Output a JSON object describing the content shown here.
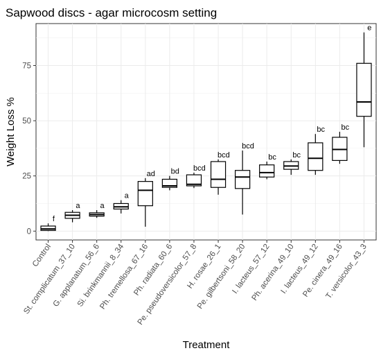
{
  "chart_data": {
    "type": "boxplot",
    "title": "Sapwood discs - agar microcosm setting",
    "xlabel": "Treatment",
    "ylabel": "Weight Loss %",
    "ylim": [
      -4,
      94
    ],
    "yticks": [
      0,
      25,
      50,
      75
    ],
    "grid": true,
    "boxes": [
      {
        "category": "Control",
        "min": 0,
        "q1": 0.3,
        "median": 1.0,
        "q3": 2.3,
        "max": 3.5,
        "label": "f"
      },
      {
        "category": "St. complicatum_37_10",
        "min": 4,
        "q1": 5.8,
        "median": 7.2,
        "q3": 8.5,
        "max": 9.5,
        "label": "a"
      },
      {
        "category": "G. applanatum_56_6",
        "min": 6,
        "q1": 6.8,
        "median": 7.5,
        "q3": 8.3,
        "max": 9.5,
        "label": "a"
      },
      {
        "category": "Si. brinkmannii_8_34",
        "min": 8,
        "q1": 10,
        "median": 11,
        "q3": 12.5,
        "max": 14,
        "label": "a"
      },
      {
        "category": "Ph. tremellosa_67_16",
        "min": 2,
        "q1": 11.5,
        "median": 18.5,
        "q3": 22.5,
        "max": 24,
        "label": "ad"
      },
      {
        "category": "Ph. radiata_60_6",
        "min": 18.5,
        "q1": 19.8,
        "median": 20.5,
        "q3": 23.5,
        "max": 25,
        "label": "bd"
      },
      {
        "category": "Pe. pseudoversicolor_57_8",
        "min": 19.5,
        "q1": 20.5,
        "median": 21.2,
        "q3": 25.5,
        "max": 26.5,
        "label": "bcd"
      },
      {
        "category": "H. rosae_26_1",
        "min": 16.5,
        "q1": 19.8,
        "median": 23.5,
        "q3": 31.5,
        "max": 32.5,
        "label": "bcd"
      },
      {
        "category": "Pe. gilbertsoni_58_20",
        "min": 7.5,
        "q1": 19.3,
        "median": 24.5,
        "q3": 27.5,
        "max": 36.5,
        "label": "bcd"
      },
      {
        "category": "I. lacteus_57_12",
        "min": 23.5,
        "q1": 24.5,
        "median": 26.5,
        "q3": 30,
        "max": 31.5,
        "label": "bc"
      },
      {
        "category": "Ph. acerina_49_10",
        "min": 25.5,
        "q1": 28,
        "median": 29.5,
        "q3": 31.5,
        "max": 32.5,
        "label": "bc"
      },
      {
        "category": "I. lacteus_49_12",
        "min": 25.5,
        "q1": 27.5,
        "median": 33,
        "q3": 40,
        "max": 44,
        "label": "bc"
      },
      {
        "category": "Pe. cinera_49_16",
        "min": 30.5,
        "q1": 32,
        "median": 37,
        "q3": 42.5,
        "max": 45,
        "label": "bc"
      },
      {
        "category": "T. versicolor_43_3",
        "min": 38,
        "q1": 52,
        "median": 58.5,
        "q3": 76,
        "max": 90,
        "label": "e"
      }
    ]
  }
}
